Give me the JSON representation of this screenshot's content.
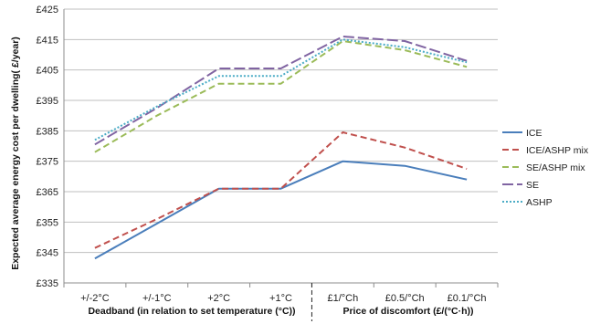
{
  "chart_data": {
    "type": "line",
    "ylabel": "Expected average energy cost per dwelling( £/year)",
    "xlabel_groups": [
      {
        "label": "Deadband  (in relation to set temperature (°C))"
      },
      {
        "label": "Price of discomfort  (£/(°C·h))"
      }
    ],
    "categories": [
      "+/-2°C",
      "+/-1°C",
      "+2°C",
      "+1°C",
      "£1/°Ch",
      "£0.5/°Ch",
      "£0.1/°Ch"
    ],
    "ylim": [
      335,
      425
    ],
    "yticks": [
      335,
      345,
      355,
      365,
      375,
      385,
      395,
      405,
      415,
      425
    ],
    "ytick_labels": [
      "£335",
      "£345",
      "£355",
      "£365",
      "£375",
      "£385",
      "£395",
      "£405",
      "£415",
      "£425"
    ],
    "grid": true,
    "legend_position": "right",
    "series": [
      {
        "name": "ICE",
        "values": [
          343,
          354.5,
          366,
          366,
          375,
          373.5,
          369
        ],
        "color": "#4a7ebb",
        "dash": "solid"
      },
      {
        "name": "ICE/ASHP mix",
        "values": [
          346.5,
          356,
          366,
          366,
          384.5,
          379.5,
          372.5
        ],
        "color": "#c0504d",
        "dash": "dashed"
      },
      {
        "name": "SE/ASHP mix",
        "values": [
          378,
          390,
          400.5,
          400.5,
          414.5,
          411.5,
          406
        ],
        "color": "#9bbb59",
        "dash": "dashed"
      },
      {
        "name": "SE",
        "values": [
          380.5,
          392.5,
          405.5,
          405.5,
          416,
          414.5,
          408
        ],
        "color": "#8064a2",
        "dash": "longdash"
      },
      {
        "name": "ASHP",
        "values": [
          382,
          393,
          403,
          403,
          415,
          412.5,
          407.5
        ],
        "color": "#4bacc6",
        "dash": "dotted"
      }
    ]
  }
}
